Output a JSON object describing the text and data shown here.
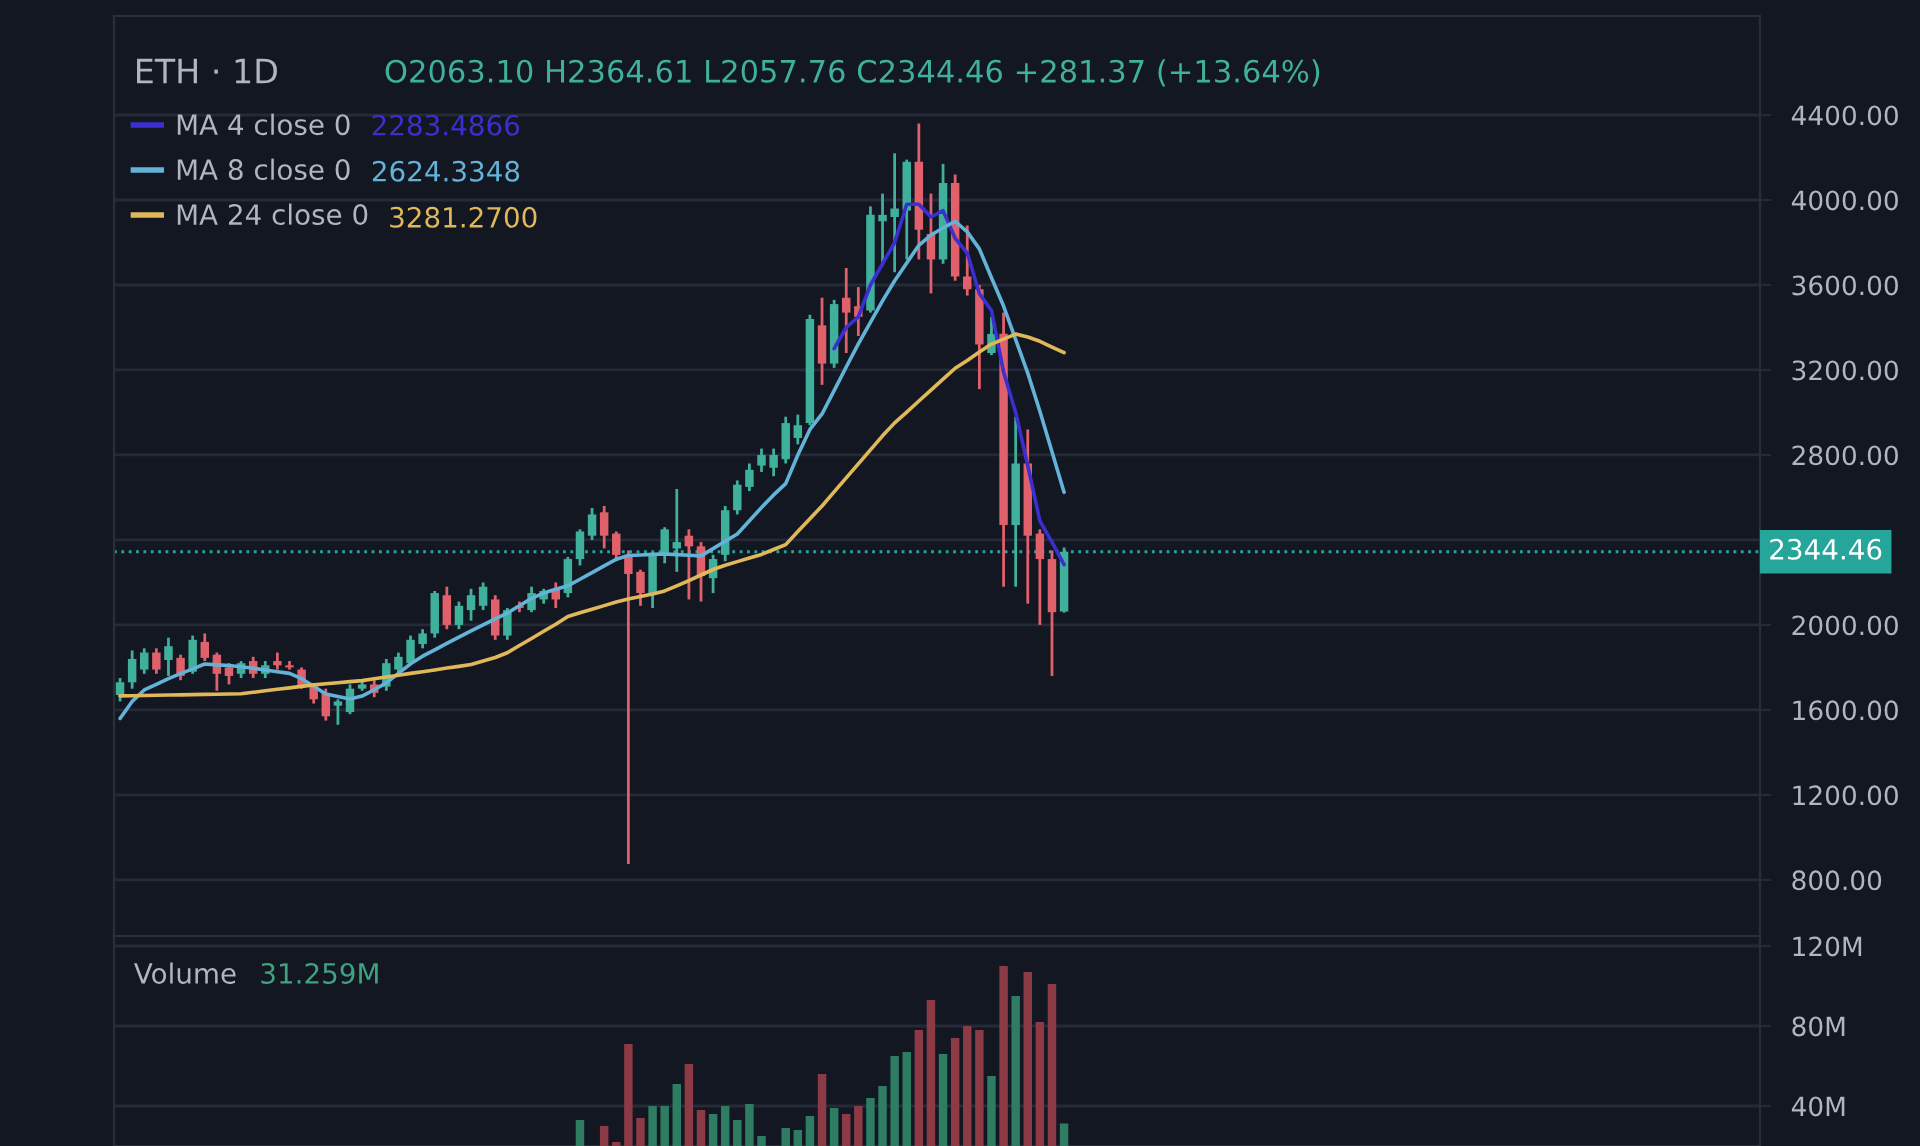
{
  "chart_data": [
    {
      "type": "candlestick",
      "categories": [
        null,
        null,
        null,
        null,
        null,
        null,
        null,
        null,
        null,
        null,
        null,
        null,
        null,
        null,
        null,
        null,
        null,
        null,
        null,
        null,
        null,
        null,
        null,
        null,
        null,
        null,
        null,
        null,
        null,
        null,
        null,
        null,
        null,
        null,
        null,
        null,
        null,
        null,
        null,
        null,
        null,
        null,
        null,
        null,
        null,
        null,
        null,
        null,
        null,
        null,
        null,
        null,
        null,
        null,
        null,
        null,
        null,
        null,
        null,
        null,
        null,
        null,
        null,
        null,
        null,
        null,
        null,
        null,
        null,
        null,
        null,
        null,
        null,
        null,
        null,
        null,
        null,
        null,
        null,
        null,
        null,
        null,
        null,
        null,
        null,
        null,
        null,
        null,
        null,
        null,
        null,
        null,
        null,
        null,
        null,
        null,
        null,
        null,
        null,
        null,
        null,
        null,
        null,
        null,
        null,
        null,
        null,
        null,
        null,
        null,
        null,
        null,
        null,
        null,
        null,
        null,
        null,
        null,
        null,
        null,
        null,
        null,
        null,
        null,
        null,
        null,
        null,
        null,
        null,
        null,
        null,
        null,
        null,
        null,
        null,
        null
      ],
      "ohlc": [
        [
          1670,
          1750,
          1640,
          1730
        ],
        [
          1730,
          1880,
          1700,
          1840
        ],
        [
          1790,
          1890,
          1770,
          1870
        ],
        [
          1870,
          1890,
          1770,
          1790
        ],
        [
          1835,
          1940,
          1760,
          1900
        ],
        [
          1845,
          1860,
          1740,
          1760
        ],
        [
          1780,
          1950,
          1770,
          1930
        ],
        [
          1920,
          1960,
          1830,
          1845
        ],
        [
          1860,
          1870,
          1690,
          1770
        ],
        [
          1800,
          1820,
          1720,
          1760
        ],
        [
          1770,
          1830,
          1750,
          1820
        ],
        [
          1830,
          1850,
          1750,
          1770
        ],
        [
          1770,
          1830,
          1750,
          1810
        ],
        [
          1830,
          1870,
          1790,
          1810
        ],
        [
          1810,
          1830,
          1790,
          1800
        ],
        [
          1790,
          1800,
          1700,
          1710
        ],
        [
          1710,
          1720,
          1630,
          1650
        ],
        [
          1680,
          1700,
          1550,
          1570
        ],
        [
          1620,
          1650,
          1530,
          1640
        ],
        [
          1590,
          1720,
          1580,
          1700
        ],
        [
          1700,
          1740,
          1690,
          1720
        ],
        [
          1720,
          1740,
          1660,
          1680
        ],
        [
          1710,
          1840,
          1690,
          1820
        ],
        [
          1790,
          1870,
          1770,
          1850
        ],
        [
          1820,
          1950,
          1810,
          1930
        ],
        [
          1910,
          1980,
          1890,
          1960
        ],
        [
          1960,
          2160,
          1940,
          2150
        ],
        [
          2140,
          2180,
          1980,
          2000
        ],
        [
          2000,
          2110,
          1980,
          2090
        ],
        [
          2070,
          2170,
          2020,
          2140
        ],
        [
          2090,
          2200,
          2070,
          2180
        ],
        [
          2120,
          2140,
          1930,
          1950
        ],
        [
          1950,
          2080,
          1930,
          2070
        ],
        [
          2090,
          2110,
          2060,
          2080
        ],
        [
          2070,
          2180,
          2060,
          2150
        ],
        [
          2120,
          2170,
          2100,
          2160
        ],
        [
          2170,
          2200,
          2080,
          2120
        ],
        [
          2150,
          2320,
          2130,
          2310
        ],
        [
          2310,
          2450,
          2280,
          2440
        ],
        [
          2420,
          2550,
          2400,
          2520
        ],
        [
          2530,
          2560,
          2360,
          2420
        ],
        [
          2430,
          2440,
          2300,
          2330
        ],
        [
          2330,
          2350,
          875,
          2240
        ],
        [
          2250,
          2260,
          2090,
          2150
        ],
        [
          2150,
          2340,
          2080,
          2330
        ],
        [
          2330,
          2460,
          2290,
          2450
        ],
        [
          2360,
          2640,
          2250,
          2390
        ],
        [
          2420,
          2450,
          2120,
          2370
        ],
        [
          2370,
          2390,
          2110,
          2230
        ],
        [
          2220,
          2330,
          2150,
          2310
        ],
        [
          2330,
          2560,
          2300,
          2540
        ],
        [
          2540,
          2680,
          2520,
          2660
        ],
        [
          2650,
          2760,
          2630,
          2730
        ],
        [
          2750,
          2830,
          2720,
          2800
        ],
        [
          2740,
          2830,
          2700,
          2800
        ],
        [
          2780,
          2980,
          2760,
          2950
        ],
        [
          2880,
          2990,
          2850,
          2940
        ],
        [
          2950,
          3460,
          2940,
          3440
        ],
        [
          3410,
          3540,
          3130,
          3230
        ],
        [
          3230,
          3530,
          3210,
          3510
        ],
        [
          3540,
          3680,
          3280,
          3470
        ],
        [
          3500,
          3590,
          3360,
          3450
        ],
        [
          3480,
          3970,
          3470,
          3930
        ],
        [
          3900,
          4030,
          3690,
          3930
        ],
        [
          3920,
          4220,
          3660,
          3960
        ],
        [
          3950,
          4190,
          3720,
          4180
        ],
        [
          4180,
          4360,
          3720,
          3860
        ],
        [
          3840,
          4030,
          3560,
          3720
        ],
        [
          3720,
          4170,
          3700,
          4080
        ],
        [
          4080,
          4120,
          3620,
          3640
        ],
        [
          3640,
          3880,
          3550,
          3580
        ],
        [
          3580,
          3600,
          3110,
          3320
        ],
        [
          3280,
          3450,
          3270,
          3370
        ],
        [
          3370,
          3470,
          2180,
          2470
        ],
        [
          2470,
          2980,
          2180,
          2760
        ],
        [
          2760,
          2920,
          2100,
          2420
        ],
        [
          2430,
          2450,
          2000,
          2310
        ],
        [
          2310,
          2350,
          1760,
          2060
        ],
        [
          2063.1,
          2364.61,
          2057.76,
          2344.46
        ],
        null,
        null,
        null,
        null,
        null,
        null,
        null,
        null,
        null,
        null,
        null,
        null,
        null,
        null,
        null,
        null,
        null,
        null,
        null,
        null,
        null,
        null,
        null,
        null,
        null,
        null,
        null,
        null,
        null,
        null,
        null,
        null,
        null,
        null,
        null,
        null,
        null,
        null,
        null,
        null,
        null,
        null,
        null,
        null,
        null,
        null,
        null,
        null,
        null,
        null,
        null,
        null,
        null,
        null,
        null,
        null,
        null
      ],
      "colors": [
        "#3fb09b",
        "#3fb09b",
        "#3fb09b",
        "#e0616b",
        "#3fb09b",
        "#e0616b",
        "#3fb09b",
        "#e0616b",
        "#e0616b",
        "#e0616b",
        "#3fb09b",
        "#e0616b",
        "#3fb09b",
        "#e0616b",
        "#e0616b",
        "#e0616b",
        "#e0616b",
        "#e0616b",
        "#3fb09b",
        "#3fb09b",
        "#3fb09b",
        "#e0616b",
        "#3fb09b",
        "#3fb09b",
        "#3fb09b",
        "#3fb09b",
        "#3fb09b",
        "#e0616b",
        "#3fb09b",
        "#3fb09b",
        "#3fb09b",
        "#e0616b",
        "#3fb09b",
        "#e0616b",
        "#3fb09b",
        "#3fb09b",
        "#e0616b",
        "#3fb09b",
        "#3fb09b",
        "#3fb09b",
        "#e0616b",
        "#e0616b",
        "#e0616b",
        "#e0616b",
        "#3fb09b",
        "#3fb09b",
        "#3fb09b",
        "#e0616b",
        "#e0616b",
        "#3fb09b",
        "#3fb09b",
        "#3fb09b",
        "#3fb09b",
        "#3fb09b",
        "#3fb09b",
        "#3fb09b",
        "#3fb09b",
        "#3fb09b",
        "#e0616b",
        "#3fb09b",
        "#e0616b",
        "#e0616b",
        "#3fb09b",
        "#3fb09b",
        "#3fb09b",
        "#3fb09b",
        "#e0616b",
        "#e0616b",
        "#3fb09b",
        "#e0616b",
        "#e0616b",
        "#e0616b",
        "#3fb09b",
        "#e0616b",
        "#3fb09b",
        "#e0616b",
        "#e0616b",
        "#e0616b",
        "#3fb09b",
        null,
        null,
        null,
        null,
        null,
        null,
        null,
        null,
        null,
        null,
        null,
        null,
        null,
        null,
        null,
        null,
        null,
        null,
        null,
        null,
        null,
        null,
        null,
        null,
        null,
        null,
        null,
        null,
        null,
        null,
        null,
        null,
        null,
        null,
        null,
        null,
        null,
        null,
        null,
        null,
        null,
        null,
        null,
        null,
        null,
        null,
        null,
        null,
        null,
        null,
        null,
        null,
        null,
        null,
        null,
        null,
        null
      ],
      "series": [
        {
          "name": "MA 4 close 0",
          "type": "line",
          "color": "#3b2fd0",
          "values": [
            null,
            null,
            null,
            null,
            null,
            null,
            null,
            null,
            null,
            null,
            null,
            null,
            null,
            null,
            null,
            null,
            null,
            null,
            null,
            null,
            null,
            null,
            null,
            null,
            null,
            null,
            null,
            null,
            null,
            null,
            null,
            null,
            null,
            null,
            null,
            null,
            null,
            null,
            null,
            null,
            null,
            null,
            null,
            null,
            null,
            null,
            null,
            null,
            null,
            null,
            null,
            null,
            null,
            null,
            null,
            null,
            null,
            null,
            null,
            3300,
            3400,
            3450,
            3600,
            3700,
            3800,
            3980,
            3980,
            3920,
            3950,
            3820,
            3750,
            3560,
            3480,
            3190,
            3000,
            2750,
            2490,
            2390,
            2283.49,
            null,
            null,
            null,
            null,
            null,
            null,
            null,
            null,
            null,
            null,
            null,
            null,
            null,
            null,
            null,
            null,
            null,
            null,
            null,
            null,
            null,
            null,
            null,
            null,
            null,
            null,
            null,
            null,
            null,
            null,
            null,
            null,
            null,
            null,
            null,
            null,
            null,
            null,
            null,
            null,
            null,
            null,
            null,
            null,
            null,
            null,
            null,
            null,
            null,
            null,
            null,
            null,
            null,
            null,
            null,
            null,
            null
          ]
        },
        {
          "name": "MA 8 close 0",
          "type": "line",
          "color": "#63b3d9",
          "values": [
            1560,
            1640,
            1694,
            1720,
            1747,
            1771,
            1793,
            1816,
            1812,
            1809,
            1803,
            1796,
            1788,
            1780,
            1772,
            1747,
            1711,
            1675,
            1663,
            1651,
            1665,
            1695,
            1727,
            1772,
            1817,
            1853,
            1883,
            1913,
            1943,
            1972,
            2000,
            2028,
            2056,
            2090,
            2125,
            2150,
            2168,
            2184,
            2215,
            2246,
            2278,
            2309,
            2327,
            2329,
            2332,
            2334,
            2331,
            2328,
            2325,
            2359,
            2394,
            2428,
            2490,
            2553,
            2612,
            2665,
            2800,
            2920,
            2993,
            3103,
            3214,
            3323,
            3424,
            3525,
            3620,
            3704,
            3787,
            3835,
            3868,
            3900,
            3850,
            3770,
            3634,
            3501,
            3343,
            3185,
            3006,
            2815,
            2624.33,
            null,
            null,
            null,
            null,
            null,
            null,
            null,
            null,
            null,
            null,
            null,
            null,
            null,
            null,
            null,
            null,
            null,
            null,
            null,
            null,
            null,
            null,
            null,
            null,
            null,
            null,
            null,
            null,
            null,
            null,
            null,
            null,
            null,
            null,
            null,
            null,
            null,
            null,
            null,
            null,
            null,
            null,
            null,
            null,
            null,
            null,
            null,
            null,
            null,
            null,
            null,
            null,
            null,
            null,
            null,
            null,
            null
          ]
        },
        {
          "name": "MA 24 close 0",
          "type": "line",
          "color": "#e0b85a",
          "values": [
            1666,
            1667,
            1668,
            1669,
            1670,
            1671,
            1672,
            1673,
            1674,
            1675,
            1676,
            1683,
            1690,
            1697,
            1704,
            1711,
            1718,
            1723,
            1728,
            1733,
            1738,
            1747,
            1755,
            1763,
            1772,
            1780,
            1788,
            1797,
            1805,
            1814,
            1830,
            1847,
            1869,
            1903,
            1936,
            1970,
            2003,
            2040,
            2057,
            2074,
            2091,
            2108,
            2122,
            2134,
            2146,
            2160,
            2184,
            2209,
            2235,
            2261,
            2281,
            2298,
            2315,
            2332,
            2355,
            2378,
            2440,
            2500,
            2560,
            2626,
            2692,
            2758,
            2824,
            2890,
            2951,
            3002,
            3054,
            3105,
            3157,
            3208,
            3245,
            3285,
            3322,
            3345,
            3369,
            3355,
            3335,
            3308,
            3281.27,
            null,
            null,
            null,
            null,
            null,
            null,
            null,
            null,
            null,
            null,
            null,
            null,
            null,
            null,
            null,
            null,
            null,
            null,
            null,
            null,
            null,
            null,
            null,
            null,
            null,
            null,
            null,
            null,
            null,
            null,
            null,
            null,
            null,
            null,
            null,
            null,
            null,
            null,
            null,
            null,
            null,
            null,
            null,
            null,
            null,
            null,
            null,
            null,
            null,
            null,
            null,
            null,
            null,
            null,
            null,
            null,
            null
          ]
        }
      ],
      "ylim": [
        536,
        4866
      ],
      "yticks": [
        {
          "value": 800,
          "label": "800.00"
        },
        {
          "value": 1200,
          "label": "1200.00"
        },
        {
          "value": 1600,
          "label": "1600.00"
        },
        {
          "value": 2000,
          "label": "2000.00"
        },
        {
          "value": 2400,
          "label": null
        },
        {
          "value": 2800,
          "label": "2800.00"
        },
        {
          "value": 3200,
          "label": "3200.00"
        },
        {
          "value": 3600,
          "label": "3600.00"
        },
        {
          "value": 4000,
          "label": "4000.00"
        },
        {
          "value": 4400,
          "label": "4400.00"
        }
      ],
      "ref_lines": [
        {
          "axis": "y",
          "value": 2344.46,
          "label": "2344.46",
          "color": "#26a69a",
          "line_style": "dotted"
        }
      ],
      "annotations": [
        "ETH · 1D",
        "O2063.10 H2364.61 L2057.76 C2344.46 +281.37 (+13.64%)",
        "2283.4866",
        "2624.3348",
        "3281.2700"
      ],
      "legend": "top left",
      "grid": "y"
    },
    {
      "type": "bar",
      "categories": [
        null,
        null,
        null,
        null,
        null,
        null,
        null,
        null,
        null,
        null,
        null,
        null,
        null,
        null,
        null,
        null,
        null,
        null,
        null,
        null,
        null,
        null,
        null,
        null,
        null,
        null,
        null,
        null,
        null,
        null,
        null,
        null,
        null,
        null,
        null,
        null,
        null,
        null,
        null,
        null,
        null,
        null,
        null,
        null,
        null,
        null,
        null,
        null,
        null,
        null,
        null,
        null,
        null,
        null,
        null,
        null,
        null,
        null,
        null,
        null,
        null,
        null,
        null,
        null,
        null,
        null,
        null,
        null,
        null,
        null,
        null,
        null,
        null,
        null,
        null,
        null,
        null,
        null,
        null,
        null,
        null,
        null,
        null,
        null,
        null,
        null,
        null,
        null,
        null,
        null,
        null,
        null,
        null,
        null,
        null,
        null,
        null,
        null,
        null,
        null,
        null,
        null,
        null,
        null,
        null,
        null,
        null,
        null,
        null,
        null,
        null,
        null,
        null,
        null,
        null,
        null,
        null,
        null,
        null,
        null,
        null,
        null,
        null,
        null,
        null,
        null,
        null,
        null,
        null,
        null,
        null,
        null,
        null,
        null,
        null,
        null
      ],
      "values": [
        null,
        null,
        null,
        null,
        null,
        null,
        null,
        null,
        null,
        null,
        null,
        null,
        null,
        null,
        null,
        null,
        null,
        null,
        null,
        null,
        null,
        null,
        null,
        null,
        null,
        null,
        null,
        null,
        null,
        null,
        null,
        null,
        null,
        null,
        null,
        null,
        null,
        null,
        33,
        null,
        30,
        22,
        71,
        34,
        40,
        40,
        51,
        61,
        38,
        36,
        40,
        33,
        41,
        25,
        null,
        29,
        28,
        35,
        56,
        39,
        36,
        40,
        44,
        50,
        65,
        67,
        78,
        93,
        66,
        74,
        80,
        78,
        55,
        110,
        95,
        107,
        82,
        101,
        31.259,
        null,
        null,
        null,
        null,
        null,
        null,
        null,
        null,
        null,
        null,
        null,
        null,
        null,
        null,
        null,
        null,
        null,
        null,
        null,
        null,
        null,
        null,
        null,
        null,
        null,
        null,
        null,
        null,
        null,
        null,
        null,
        null,
        null,
        null,
        null,
        null,
        null,
        null,
        null,
        null,
        null,
        null,
        null,
        null,
        null,
        null,
        null,
        null,
        null,
        null,
        null,
        null,
        null,
        null,
        null,
        null,
        null
      ],
      "colors": [
        "#2e7d63",
        "#2e7d63",
        "#2e7d63",
        "#8b3a46",
        "#2e7d63",
        "#8b3a46",
        "#2e7d63",
        "#8b3a46",
        "#8b3a46",
        "#8b3a46",
        "#2e7d63",
        "#8b3a46",
        "#2e7d63",
        "#8b3a46",
        "#8b3a46",
        "#8b3a46",
        "#8b3a46",
        "#8b3a46",
        "#2e7d63",
        "#2e7d63",
        "#2e7d63",
        "#8b3a46",
        "#2e7d63",
        "#2e7d63",
        "#2e7d63",
        "#2e7d63",
        "#2e7d63",
        "#8b3a46",
        "#2e7d63",
        "#2e7d63",
        "#2e7d63",
        "#8b3a46",
        "#2e7d63",
        "#8b3a46",
        "#2e7d63",
        "#2e7d63",
        "#8b3a46",
        "#2e7d63",
        "#2e7d63",
        "#2e7d63",
        "#8b3a46",
        "#8b3a46",
        "#8b3a46",
        "#8b3a46",
        "#2e7d63",
        "#2e7d63",
        "#2e7d63",
        "#8b3a46",
        "#8b3a46",
        "#2e7d63",
        "#2e7d63",
        "#2e7d63",
        "#2e7d63",
        "#2e7d63",
        "#2e7d63",
        "#2e7d63",
        "#2e7d63",
        "#2e7d63",
        "#8b3a46",
        "#2e7d63",
        "#8b3a46",
        "#8b3a46",
        "#2e7d63",
        "#2e7d63",
        "#2e7d63",
        "#2e7d63",
        "#8b3a46",
        "#8b3a46",
        "#2e7d63",
        "#8b3a46",
        "#8b3a46",
        "#8b3a46",
        "#2e7d63",
        "#8b3a46",
        "#2e7d63",
        "#8b3a46",
        "#8b3a46",
        "#8b3a46",
        "#2e7d63",
        null,
        null,
        null,
        null,
        null,
        null,
        null,
        null,
        null,
        null,
        null,
        null,
        null,
        null,
        null,
        null,
        null,
        null,
        null,
        null,
        null,
        null,
        null,
        null,
        null,
        null,
        null,
        null,
        null,
        null,
        null,
        null,
        null,
        null,
        null,
        null,
        null,
        null,
        null,
        null,
        null,
        null,
        null,
        null,
        null,
        null,
        null,
        null,
        null,
        null,
        null,
        null,
        null,
        null,
        null,
        null,
        null
      ],
      "ylim": [
        20,
        125
      ],
      "yticks": [
        {
          "value": 40,
          "label": "40M"
        },
        {
          "value": 80,
          "label": "80M"
        },
        {
          "value": 120,
          "label": "120M"
        }
      ],
      "annotations": [
        "Volume",
        "31.259M"
      ],
      "grid": "y"
    }
  ]
}
